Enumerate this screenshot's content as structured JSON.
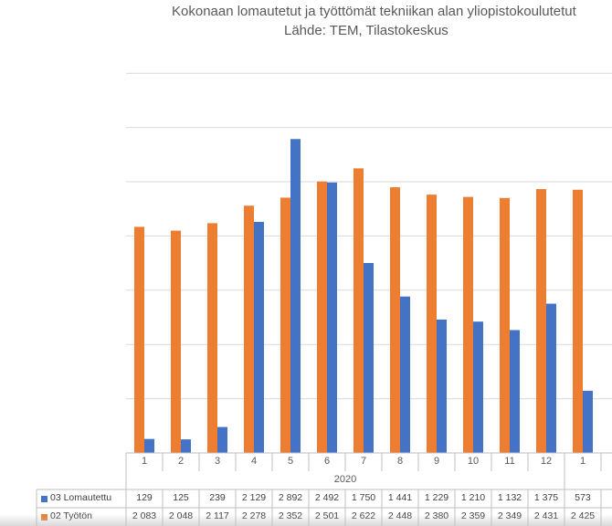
{
  "chart_data": {
    "type": "bar",
    "title": "Kokonaan lomautetut ja työttömät tekniikan alan yliopistokoulutetut",
    "subtitle": "Lähde: TEM, Tilastokeskus",
    "categories": [
      "1",
      "2",
      "3",
      "4",
      "5",
      "6",
      "7",
      "8",
      "9",
      "10",
      "11",
      "12",
      "1"
    ],
    "year_labels": [
      {
        "label": "2020",
        "from": 0,
        "to": 11
      }
    ],
    "series": [
      {
        "name": "03 Lomautettu",
        "color": "#4472c4",
        "values": [
          129,
          125,
          239,
          2129,
          2892,
          2492,
          1750,
          1441,
          1229,
          1210,
          1132,
          1375,
          573
        ],
        "table_values": [
          "129",
          "125",
          "239",
          "2 129",
          "2 892",
          "2 492",
          "1 750",
          "1 441",
          "1 229",
          "1 210",
          "1 132",
          "1 375",
          "573"
        ]
      },
      {
        "name": "02 Työtön",
        "color": "#ed7d31",
        "values": [
          2083,
          2048,
          2117,
          2278,
          2352,
          2501,
          2622,
          2448,
          2380,
          2359,
          2349,
          2431,
          2425
        ],
        "table_values": [
          "2 083",
          "2 048",
          "2 117",
          "2 278",
          "2 352",
          "2 501",
          "2 622",
          "2 448",
          "2 380",
          "2 359",
          "2 349",
          "2 431",
          "2 425"
        ]
      }
    ],
    "ylim": [
      0,
      3500
    ],
    "grid": true,
    "legend": "data-table"
  }
}
